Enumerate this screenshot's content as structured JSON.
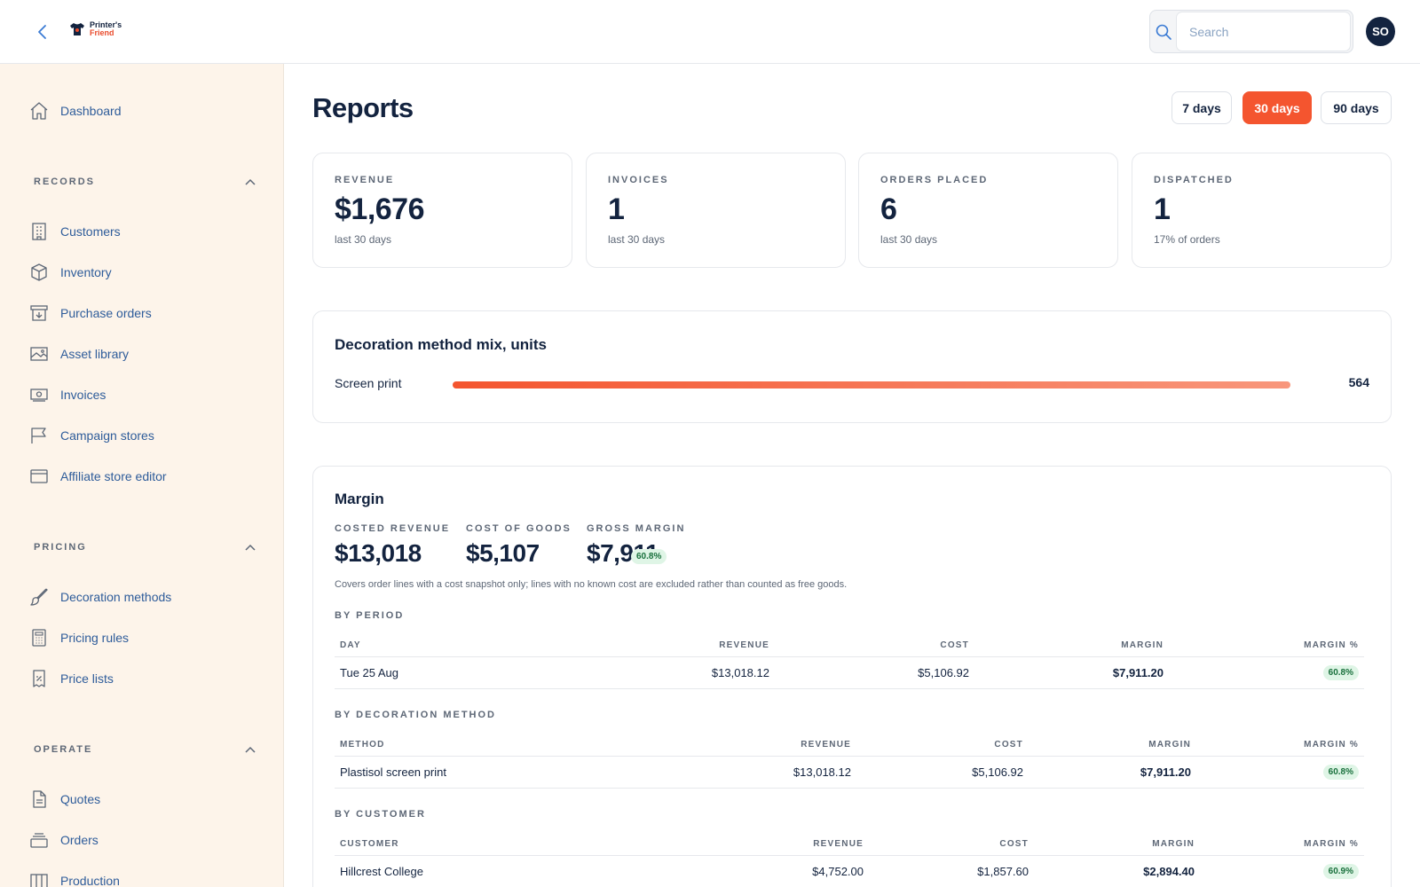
{
  "app": {
    "logo_line1": "Printer's",
    "logo_line2": "Friend",
    "search_placeholder": "Search",
    "avatar_initials": "SO"
  },
  "sidebar": {
    "dashboard": "Dashboard",
    "records": {
      "label": "RECORDS",
      "items": [
        "Customers",
        "Inventory",
        "Purchase orders",
        "Asset library",
        "Invoices",
        "Campaign stores",
        "Affiliate store editor"
      ]
    },
    "pricing": {
      "label": "PRICING",
      "items": [
        "Decoration methods",
        "Pricing rules",
        "Price lists"
      ]
    },
    "operate": {
      "label": "OPERATE",
      "items": [
        "Quotes",
        "Orders",
        "Production"
      ]
    }
  },
  "page": {
    "title": "Reports",
    "ranges": [
      "7 days",
      "30 days",
      "90 days"
    ],
    "active_range": "30 days"
  },
  "stats": [
    {
      "label": "REVENUE",
      "value": "$1,676",
      "sub": "last 30 days"
    },
    {
      "label": "INVOICES",
      "value": "1",
      "sub": "last 30 days"
    },
    {
      "label": "ORDERS PLACED",
      "value": "6",
      "sub": "last 30 days"
    },
    {
      "label": "DISPATCHED",
      "value": "1",
      "sub": "17% of orders"
    }
  ],
  "mix": {
    "title": "Decoration method mix, units",
    "label": "Screen print",
    "value": "564",
    "share": 1.0
  },
  "margin": {
    "title": "Margin",
    "costed_revenue_label": "COSTED REVENUE",
    "costed_revenue": "$13,018",
    "cost_of_goods_label": "COST OF GOODS",
    "cost_of_goods": "$5,107",
    "gross_margin_label": "GROSS MARGIN",
    "gross_margin": "$7,911",
    "gross_margin_pct": "60.8%",
    "note": "Covers order lines with a cost snapshot only; lines with no known cost are excluded rather than counted as free goods.",
    "by_period": {
      "title": "BY PERIOD",
      "headers": [
        "DAY",
        "REVENUE",
        "COST",
        "MARGIN",
        "MARGIN %"
      ],
      "rows": [
        [
          "Tue 25 Aug",
          "$13,018.12",
          "$5,106.92",
          "$7,911.20",
          "60.8%"
        ]
      ]
    },
    "by_method": {
      "title": "BY DECORATION METHOD",
      "headers": [
        "METHOD",
        "REVENUE",
        "COST",
        "MARGIN",
        "MARGIN %"
      ],
      "rows": [
        [
          "Plastisol screen print",
          "$13,018.12",
          "$5,106.92",
          "$7,911.20",
          "60.8%"
        ]
      ]
    },
    "by_customer": {
      "title": "BY CUSTOMER",
      "headers": [
        "CUSTOMER",
        "REVENUE",
        "COST",
        "MARGIN",
        "MARGIN %"
      ],
      "rows": [
        [
          "Hillcrest College",
          "$4,752.00",
          "$1,857.60",
          "$2,894.40",
          "60.9%"
        ]
      ]
    }
  },
  "colors": {
    "accent": "#f4552f",
    "navy": "#13233f",
    "sidebar_bg": "#fdf4ea",
    "link": "#2e5c9a"
  }
}
